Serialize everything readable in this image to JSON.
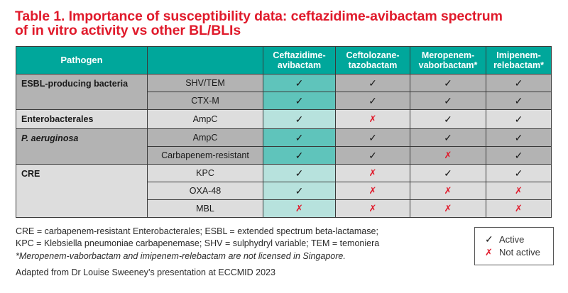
{
  "title": {
    "line1": "Table 1. Importance of susceptibility data: ceftazidime-avibactam spectrum",
    "line2": "of in vitro activity vs other BL/BLIs"
  },
  "table": {
    "headers": [
      "Pathogen",
      "",
      "Ceftazidime-\navibactam",
      "Ceftolozane-\ntazobactam",
      "Meropenem-\nvaborbactam*",
      "Imipenem-\nrelebactam*"
    ],
    "groups": [
      {
        "name": "ESBL-producing bacteria",
        "rows": [
          {
            "type": "SHV/TEM",
            "values": [
              "✓",
              "✓",
              "✓",
              "✓"
            ]
          },
          {
            "type": "CTX-M",
            "values": [
              "✓",
              "✓",
              "✓",
              "✓"
            ]
          }
        ]
      },
      {
        "name": "Enterobacterales",
        "rows": [
          {
            "type": "AmpC",
            "values": [
              "✓",
              "✗",
              "✓",
              "✓"
            ]
          }
        ]
      },
      {
        "name": "P. aeruginosa",
        "rows": [
          {
            "type": "AmpC",
            "values": [
              "✓",
              "✓",
              "✓",
              "✓"
            ]
          },
          {
            "type": "Carbapenem-resistant",
            "values": [
              "✓",
              "✓",
              "✗",
              "✓"
            ]
          }
        ]
      },
      {
        "name": "CRE",
        "rows": [
          {
            "type": "KPC",
            "values": [
              "✓",
              "✗",
              "✓",
              "✓"
            ]
          },
          {
            "type": "OXA-48",
            "values": [
              "✓",
              "✗",
              "✗",
              "✗"
            ]
          },
          {
            "type": "MBL",
            "values": [
              "✗",
              "✗",
              "✗",
              "✗"
            ]
          }
        ]
      }
    ]
  },
  "footnotes": {
    "abbrev1": "CRE = carbapenem-resistant Enterobacterales; ESBL = extended spectrum beta-lactamase;",
    "abbrev2": "KPC = Klebsiella pneumoniae carbapenemase; SHV = sulphydryl variable; TEM = temoniera",
    "license": "*Meropenem-vaborbactam and imipenem-relebactam are not licensed in Singapore.",
    "source": "Adapted from Dr Louise Sweeney’s presentation at ECCMID 2023"
  },
  "legend": {
    "active_symbol": "✓",
    "active": "Active",
    "not_active_symbol": "✗",
    "not_active": "Not active"
  },
  "colors": {
    "title": "#e01a2b",
    "header": "#00a79b",
    "teal_dark": "#5fc4bb",
    "teal_light": "#b7e2dd",
    "gray_dark": "#b3b3b3",
    "gray_light": "#dddddd"
  }
}
